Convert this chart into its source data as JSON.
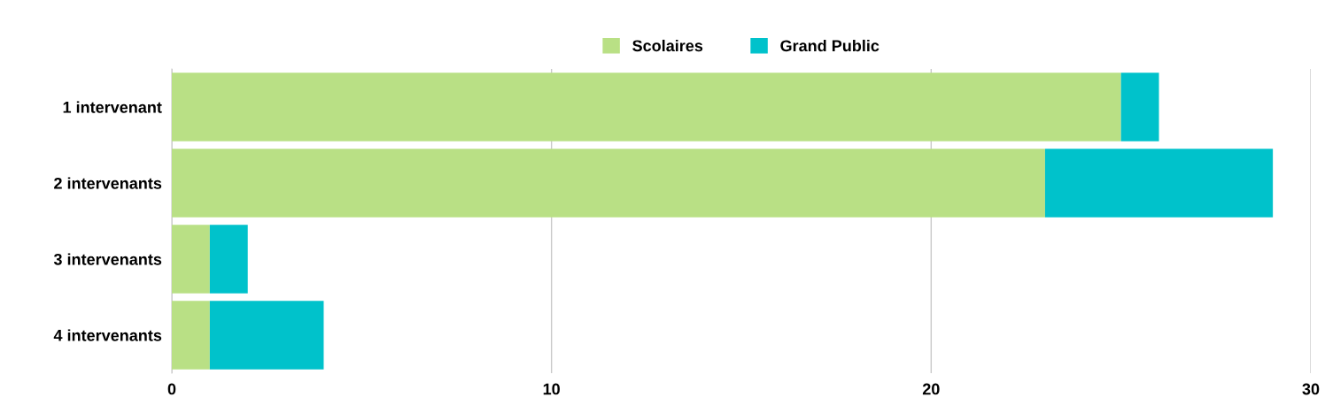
{
  "chart_data": {
    "type": "bar",
    "orientation": "horizontal",
    "stacked": true,
    "categories": [
      "1 intervenant",
      "2 intervenants",
      "3 intervenants",
      "4 intervenants"
    ],
    "series": [
      {
        "name": "Scolaires",
        "color": "#b9e085",
        "values": [
          25,
          23,
          1,
          1
        ]
      },
      {
        "name": "Grand Public",
        "color": "#00c2cb",
        "values": [
          1,
          6,
          1,
          3
        ]
      }
    ],
    "xlim": [
      0,
      30
    ],
    "xticks": [
      0,
      10,
      20,
      30
    ],
    "grid": "x",
    "legend": "top"
  }
}
